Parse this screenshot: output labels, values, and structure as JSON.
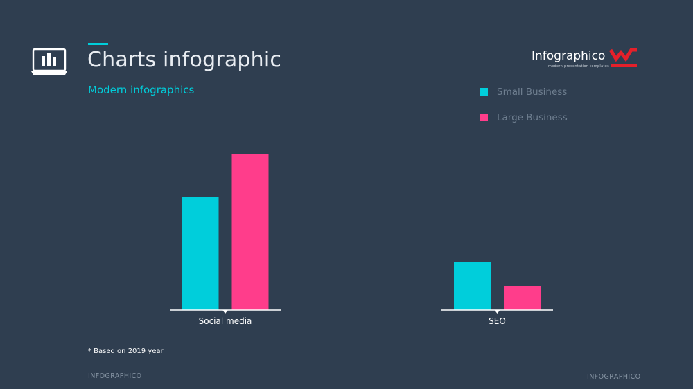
{
  "header": {
    "title": "Charts infographic",
    "subtitle": "Modern infographics"
  },
  "brand": {
    "name": "Infographico",
    "tagline": "modern presentation templates",
    "logo_color": "#e5202a"
  },
  "icons": {
    "header_icon": "laptop-bar-chart-icon",
    "brand_logo": "infographico-w-logo-icon"
  },
  "note": "* Based  on 2019 year",
  "footer": {
    "left": "INFOGRAPHICO",
    "right": "INFOGRAPHICO"
  },
  "colors": {
    "background": "#2f3e50",
    "accent": "#00cedb",
    "small_business": "#00cedb",
    "large_business": "#ff3d8b"
  },
  "chart_data": [
    {
      "type": "bar",
      "categories": [
        "Social media"
      ],
      "series": [
        {
          "name": "Small Business",
          "values": [
            163
          ]
        },
        {
          "name": "Large Business",
          "values": [
            226
          ]
        }
      ],
      "ylim": [
        0,
        250
      ]
    },
    {
      "type": "bar",
      "categories": [
        "SEO"
      ],
      "series": [
        {
          "name": "Small Business",
          "values": [
            70
          ]
        },
        {
          "name": "Large Business",
          "values": [
            35
          ]
        }
      ],
      "ylim": [
        0,
        250
      ]
    }
  ],
  "legend": [
    {
      "label": "Small Business",
      "color": "#00cedb"
    },
    {
      "label": "Large Business",
      "color": "#ff3d8b"
    }
  ]
}
